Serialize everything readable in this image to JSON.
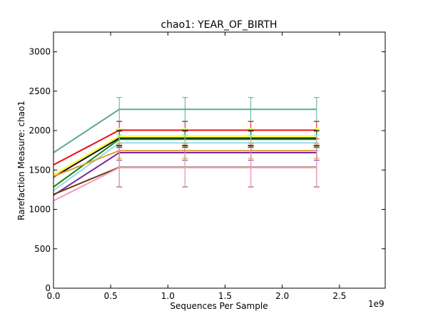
{
  "chart_data": {
    "type": "line",
    "title": "chao1: YEAR_OF_BIRTH",
    "xlabel": "Sequences Per Sample",
    "ylabel": "Rarefaction Measure: chao1",
    "x_multiplier_label": "1e9",
    "xlim": [
      0,
      2.9
    ],
    "ylim": [
      0,
      3250
    ],
    "grid": false,
    "x_ticks": [
      0.0,
      0.5,
      1.0,
      1.5,
      2.0,
      2.5
    ],
    "x_tick_labels": [
      "0.0",
      "0.5",
      "1.0",
      "1.5",
      "2.0",
      "2.5"
    ],
    "y_ticks": [
      0,
      500,
      1000,
      1500,
      2000,
      2500,
      3000
    ],
    "y_tick_labels": [
      "0",
      "500",
      "1000",
      "1500",
      "2000",
      "2500",
      "3000"
    ],
    "x": [
      0.0,
      0.575,
      1.15,
      1.725,
      2.3
    ],
    "series": [
      {
        "color": "#5fa899",
        "values": [
          1720,
          2270,
          2270,
          2270,
          2270
        ],
        "err": [
          0,
          150,
          150,
          150,
          150
        ]
      },
      {
        "color": "#ee1111",
        "values": [
          1565,
          2005,
          2005,
          2005,
          2005
        ],
        "err": [
          0,
          110,
          110,
          110,
          110
        ]
      },
      {
        "color": "#ffff22",
        "values": [
          1440,
          1930,
          1930,
          1930,
          1930
        ],
        "err": [
          0,
          100,
          100,
          100,
          100
        ]
      },
      {
        "color": "#111111",
        "values": [
          1410,
          1905,
          1905,
          1905,
          1905
        ],
        "err": [
          0,
          100,
          100,
          100,
          100
        ]
      },
      {
        "color": "#118811",
        "values": [
          1285,
          1890,
          1890,
          1890,
          1890
        ],
        "err": [
          0,
          100,
          100,
          100,
          100
        ]
      },
      {
        "color": "#9ad8ee",
        "values": [
          1240,
          1845,
          1845,
          1845,
          1845
        ],
        "err": [
          0,
          100,
          100,
          100,
          100
        ]
      },
      {
        "color": "#e49a2e",
        "values": [
          1420,
          1745,
          1745,
          1745,
          1745
        ],
        "err": [
          0,
          95,
          95,
          95,
          95
        ]
      },
      {
        "color": "#7a2a9a",
        "values": [
          1180,
          1720,
          1720,
          1720,
          1720
        ],
        "err": [
          0,
          95,
          95,
          95,
          95
        ]
      },
      {
        "color": "#6b3b10",
        "values": [
          1190,
          1535,
          1535,
          1535,
          1535
        ],
        "err": [
          0,
          250,
          250,
          250,
          250
        ]
      },
      {
        "color": "#f29ac6",
        "values": [
          1110,
          1530,
          1530,
          1530,
          1530
        ],
        "err": [
          0,
          250,
          250,
          250,
          250
        ]
      }
    ]
  }
}
